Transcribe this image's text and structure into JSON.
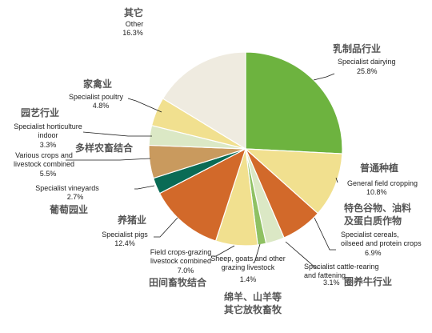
{
  "chart_data": {
    "type": "pie",
    "title": "",
    "start_angle_deg": 0,
    "direction": "clockwise",
    "slices": [
      {
        "zh": "乳制品行业",
        "en": [
          "Specialist dairying"
        ],
        "value": 25.8,
        "value_label": "25.8%",
        "color": "#6db33f"
      },
      {
        "zh": "普通种植",
        "en": [
          "General field cropping"
        ],
        "value": 10.8,
        "value_label": "10.8%",
        "color": "#f1e08f"
      },
      {
        "zh": "特色谷物、油料及蛋白质作物",
        "en": [
          "Specialist cereals,",
          "oilseed and protein crops"
        ],
        "value": 6.9,
        "value_label": "6.9%",
        "color": "#d2692a"
      },
      {
        "zh": "圈养牛行业",
        "en": [
          "Specialist cattle-rearing",
          "and fattening"
        ],
        "value": 3.1,
        "value_label": "3.1%",
        "color": "#dbe8c5"
      },
      {
        "zh": "绵羊、山羊等其它放牧畜牧",
        "en": [
          "Sheep, goats and other",
          "grazing livestock"
        ],
        "value": 1.4,
        "value_label": "1.4%",
        "color": "#8fc163"
      },
      {
        "zh": "田间畜牧结合",
        "en": [
          "Field crops-grazing",
          "livestock combined"
        ],
        "value": 7.0,
        "value_label": "7.0%",
        "color": "#f1e08f"
      },
      {
        "zh": "养猪业",
        "en": [
          "Specialist pigs"
        ],
        "value": 12.4,
        "value_label": "12.4%",
        "color": "#d2692a"
      },
      {
        "zh": "葡萄园业",
        "en": [
          "Specialist vineyards"
        ],
        "value": 2.7,
        "value_label": "2.7%",
        "color": "#0a6b55"
      },
      {
        "zh": "多样农畜结合",
        "en": [
          "Various crops and",
          "livestock combined"
        ],
        "value": 5.5,
        "value_label": "5.5%",
        "color": "#c99a5e"
      },
      {
        "zh": "园艺行业",
        "en": [
          "Specialist horticulture",
          "indoor"
        ],
        "value": 3.3,
        "value_label": "3.3%",
        "color": "#dbe8c5"
      },
      {
        "zh": "家禽业",
        "en": [
          "Specialist poultry"
        ],
        "value": 4.8,
        "value_label": "4.8%",
        "color": "#f1e08f"
      },
      {
        "zh": "其它",
        "en": [
          "Other"
        ],
        "value": 16.3,
        "value_label": "16.3%",
        "color": "#efebe0"
      }
    ]
  }
}
